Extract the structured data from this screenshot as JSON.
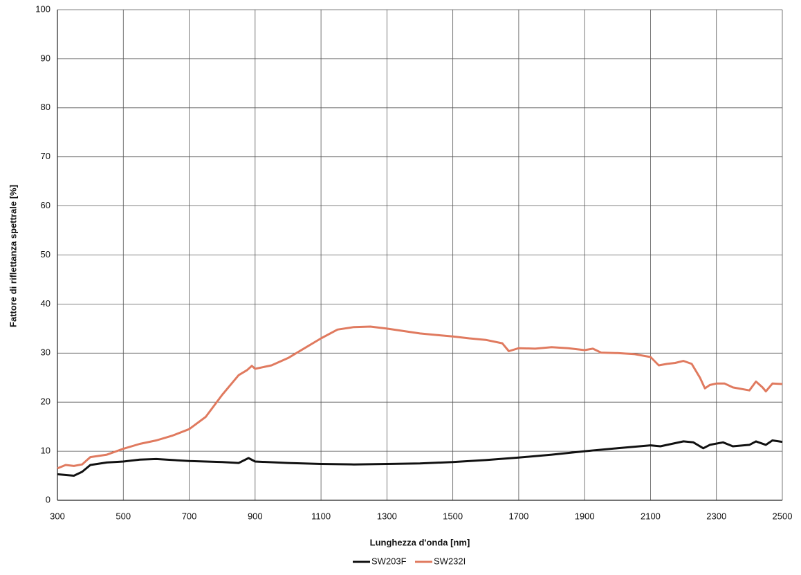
{
  "chart_data": {
    "type": "line",
    "xlabel": "Lunghezza d'onda [nm]",
    "ylabel": "Fattore di riflettanza spettrale [%]",
    "xlim": [
      300,
      2500
    ],
    "xticks": [
      300,
      500,
      700,
      900,
      1100,
      1300,
      1500,
      1700,
      1900,
      2100,
      2300,
      2500
    ],
    "ylim": [
      0,
      100
    ],
    "yticks": [
      0,
      10,
      20,
      30,
      40,
      50,
      60,
      70,
      80,
      90,
      100
    ],
    "grid": true,
    "legend": "bottom",
    "series": [
      {
        "name": "SW203F",
        "color": "#111111",
        "x": [
          300,
          350,
          375,
          400,
          450,
          500,
          550,
          600,
          700,
          800,
          850,
          880,
          900,
          1000,
          1100,
          1200,
          1300,
          1400,
          1500,
          1600,
          1700,
          1800,
          1900,
          2000,
          2100,
          2130,
          2200,
          2230,
          2260,
          2280,
          2320,
          2350,
          2400,
          2420,
          2450,
          2470,
          2500
        ],
        "values": [
          5.3,
          5.0,
          5.8,
          7.2,
          7.7,
          7.9,
          8.3,
          8.4,
          8.0,
          7.8,
          7.6,
          8.6,
          7.9,
          7.6,
          7.4,
          7.3,
          7.4,
          7.5,
          7.8,
          8.2,
          8.7,
          9.3,
          10.0,
          10.6,
          11.2,
          11.0,
          12.0,
          11.8,
          10.6,
          11.3,
          11.8,
          11.0,
          11.3,
          12.0,
          11.3,
          12.2,
          11.9
        ]
      },
      {
        "name": "SW232I",
        "color": "#e07a5f",
        "x": [
          300,
          325,
          350,
          375,
          400,
          450,
          500,
          550,
          600,
          650,
          700,
          750,
          800,
          850,
          875,
          890,
          900,
          950,
          1000,
          1050,
          1100,
          1150,
          1200,
          1250,
          1300,
          1350,
          1400,
          1450,
          1500,
          1550,
          1600,
          1650,
          1670,
          1700,
          1750,
          1800,
          1850,
          1900,
          1925,
          1950,
          2000,
          2050,
          2100,
          2125,
          2150,
          2175,
          2200,
          2225,
          2250,
          2265,
          2280,
          2300,
          2325,
          2350,
          2400,
          2420,
          2440,
          2450,
          2470,
          2500
        ],
        "values": [
          6.5,
          7.2,
          7.0,
          7.3,
          8.8,
          9.3,
          10.5,
          11.5,
          12.2,
          13.2,
          14.5,
          17.0,
          21.5,
          25.5,
          26.5,
          27.4,
          26.8,
          27.5,
          29.0,
          31.0,
          33.0,
          34.8,
          35.3,
          35.4,
          35.0,
          34.5,
          34.0,
          33.7,
          33.4,
          33.0,
          32.7,
          32.0,
          30.4,
          31.0,
          30.9,
          31.2,
          31.0,
          30.6,
          30.9,
          30.1,
          30.0,
          29.8,
          29.2,
          27.5,
          27.8,
          28.0,
          28.4,
          27.8,
          25.0,
          22.8,
          23.5,
          23.8,
          23.8,
          23.0,
          22.4,
          24.2,
          23.0,
          22.2,
          23.8,
          23.7
        ]
      }
    ]
  }
}
